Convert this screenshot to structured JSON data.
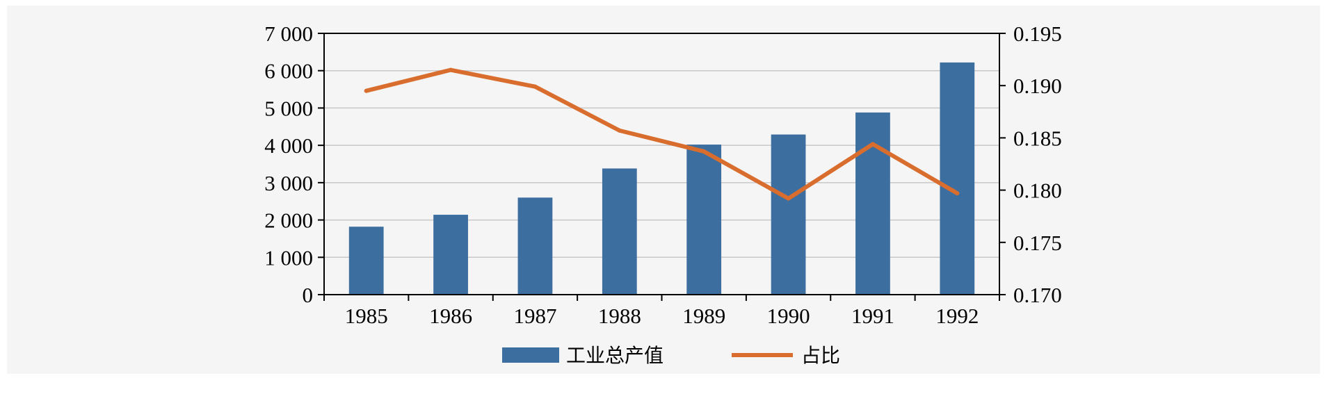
{
  "chart_data": {
    "type": "bar",
    "categories": [
      "1985",
      "1986",
      "1987",
      "1988",
      "1989",
      "1990",
      "1991",
      "1992"
    ],
    "series": [
      {
        "name": "工业总产值",
        "type": "bar",
        "axis": "left",
        "values": [
          1820,
          2140,
          2600,
          3380,
          4020,
          4290,
          4880,
          6220
        ]
      },
      {
        "name": "占比",
        "type": "line",
        "axis": "right",
        "values": [
          0.1895,
          0.1915,
          0.1899,
          0.1857,
          0.1837,
          0.1792,
          0.1844,
          0.1797
        ]
      }
    ],
    "y_left": {
      "ylim": [
        0,
        7000
      ],
      "ticks": [
        0,
        1000,
        2000,
        3000,
        4000,
        5000,
        6000,
        7000
      ],
      "tick_labels": [
        "0",
        "1 000",
        "2 000",
        "3 000",
        "4 000",
        "5 000",
        "6 000",
        "7 000"
      ]
    },
    "y_right": {
      "ylim": [
        0.17,
        0.195
      ],
      "ticks": [
        0.17,
        0.175,
        0.18,
        0.185,
        0.19,
        0.195
      ],
      "tick_labels": [
        "0.170",
        "0.175",
        "0.180",
        "0.185",
        "0.190",
        "0.195"
      ]
    },
    "grid": true,
    "legend": "bottom",
    "colors": {
      "bar": "#3c6ea0",
      "line": "#d96d2e",
      "grid": "#c8c8c8"
    }
  }
}
